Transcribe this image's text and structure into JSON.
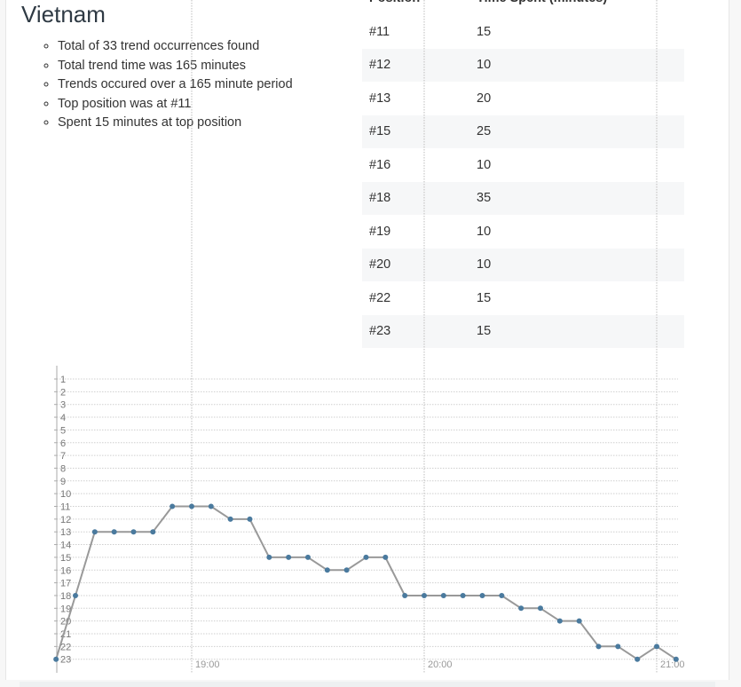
{
  "country": "Vietnam",
  "summary": [
    "Total of 33 trend occurrences found",
    "Total trend time was 165 minutes",
    "Trends occured over a 165 minute period",
    "Top position was at #11",
    "Spent 15 minutes at top position"
  ],
  "table": {
    "headers": [
      "Position",
      "Time Spent (minutes)"
    ],
    "rows": [
      [
        "#11",
        "15"
      ],
      [
        "#12",
        "10"
      ],
      [
        "#13",
        "20"
      ],
      [
        "#15",
        "25"
      ],
      [
        "#16",
        "10"
      ],
      [
        "#18",
        "35"
      ],
      [
        "#19",
        "10"
      ],
      [
        "#20",
        "10"
      ],
      [
        "#22",
        "15"
      ],
      [
        "#23",
        "15"
      ]
    ]
  },
  "chart_data": {
    "type": "line",
    "title": "",
    "xlabel": "",
    "ylabel": "",
    "y_inverted": true,
    "ylim": [
      1,
      23
    ],
    "y_ticks": [
      "1",
      "2",
      "3",
      "4",
      "5",
      "6",
      "7",
      "8",
      "9",
      "10",
      "11",
      "12",
      "13",
      "14",
      "15",
      "16",
      "17",
      "18",
      "19",
      "20",
      "21",
      "22",
      "23"
    ],
    "x_ticks": [
      "19:00",
      "20:00",
      "21:00"
    ],
    "grid": true,
    "line_color": "#999999",
    "marker_color": "#4a7a9e",
    "series": [
      {
        "x": [
          "18:25",
          "18:30",
          "18:35",
          "18:40",
          "18:45",
          "18:50",
          "18:55",
          "19:00",
          "19:05",
          "19:10",
          "19:15",
          "19:20",
          "19:25",
          "19:30",
          "19:35",
          "19:40",
          "19:45",
          "19:50",
          "19:55",
          "20:00",
          "20:05",
          "20:10",
          "20:15",
          "20:20",
          "20:25",
          "20:30",
          "20:35",
          "20:40",
          "20:45",
          "20:50",
          "20:55",
          "21:00",
          "21:05"
        ],
        "values": [
          23,
          18,
          13,
          13,
          13,
          13,
          11,
          11,
          11,
          12,
          12,
          15,
          15,
          15,
          16,
          16,
          15,
          15,
          18,
          18,
          18,
          18,
          18,
          18,
          19,
          19,
          20,
          20,
          22,
          22,
          23,
          22,
          23
        ]
      }
    ]
  }
}
